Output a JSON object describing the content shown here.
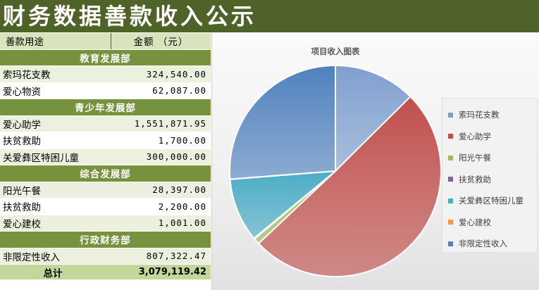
{
  "title": "财务数据善款收入公示",
  "table": {
    "headers": [
      "善款用途",
      "金额  （元）"
    ],
    "sections": [
      {
        "name": "教育发展部",
        "items": [
          {
            "name": "索玛花支教",
            "amount": "324,540.00"
          },
          {
            "name": "爱心物资",
            "amount": "62,087.00"
          }
        ]
      },
      {
        "name": "青少年发展部",
        "items": [
          {
            "name": "爱心助学",
            "amount": "1,551,871.95"
          },
          {
            "name": "扶贫救助",
            "amount": "1,700.00"
          },
          {
            "name": "关爱彝区特困儿童",
            "amount": "300,000.00"
          }
        ]
      },
      {
        "name": "综合发展部",
        "items": [
          {
            "name": "阳光午餐",
            "amount": "28,397.00"
          },
          {
            "name": "扶贫救助",
            "amount": "2,200.00"
          },
          {
            "name": "爱心建校",
            "amount": "1,001.00"
          }
        ]
      },
      {
        "name": "行政财务部",
        "items": [
          {
            "name": "非限定性收入",
            "amount": "807,322.47"
          }
        ]
      }
    ],
    "total_label": "总计",
    "total_amount": "3,079,119.42"
  },
  "chart_data": {
    "type": "pie",
    "title": "项目收入图表",
    "legend_position": "right",
    "categories": [
      "索玛花支教",
      "爱心助学",
      "阳光午餐",
      "扶贫救助",
      "关爱彝区特困儿童",
      "爱心建校",
      "非限定性收入"
    ],
    "values": [
      386627,
      1551871.95,
      28397,
      3900,
      300000,
      1001,
      807322.47
    ],
    "colors": [
      "#7f9fcf",
      "#c0504d",
      "#9bbb59",
      "#8064a2",
      "#4bacc6",
      "#f79646",
      "#4f81bd"
    ]
  }
}
